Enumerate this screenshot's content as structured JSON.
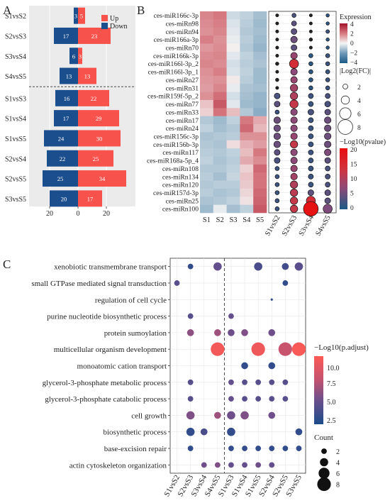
{
  "panel_labels": {
    "a": "A",
    "b": "B",
    "c": "C"
  },
  "colors": {
    "up": "#f8524d",
    "down": "#1b4e8c"
  },
  "chart_data": [
    {
      "type": "bar",
      "panel": "A",
      "legend": {
        "up": "Up",
        "down": "Down",
        "position": "top-right"
      },
      "categories": [
        "S1vsS2",
        "S2vsS3",
        "S3vsS4",
        "S4vsS5",
        "S1vsS3",
        "S1vsS4",
        "S1vsS5",
        "S2vsS4",
        "S2vsS5",
        "S3vsS5"
      ],
      "series": [
        {
          "name": "Down",
          "values": [
            3,
            17,
            6,
            13,
            16,
            17,
            24,
            22,
            25,
            20
          ]
        },
        {
          "name": "Up",
          "values": [
            5,
            23,
            3,
            13,
            22,
            29,
            30,
            25,
            34,
            17
          ]
        }
      ],
      "x_ticks": [
        "20",
        "0",
        "20"
      ],
      "xlim": [
        -25,
        35
      ],
      "separator_after_index": 3
    },
    {
      "type": "heatmap",
      "panel": "B",
      "rows": [
        "ces-miR166c-3p",
        "ces-miRn98",
        "ces-miRn94",
        "ces-miR166a-3p",
        "ces-miRn70",
        "ces-miR166k-3p",
        "ces-miR166l-3p_2",
        "ces-miR166l-3p_1",
        "ces-miRn27",
        "ces-miRn31",
        "ces-miR159f-5p_2",
        "ces-miRn77",
        "ces-miRn33",
        "ces-miRn17",
        "ces-miRn24",
        "ces-miR156c-3p",
        "ces-miR156b-3p",
        "ces-miRn117",
        "ces-miR168a-5p_4",
        "ces-miRn108",
        "ces-miRn134",
        "ces-miRn120",
        "ces-miR157d-3p",
        "ces-miRn25",
        "ces-miRn100"
      ],
      "columns": [
        "S1",
        "S2",
        "S3",
        "S4",
        "S5"
      ],
      "values": [
        [
          1.8,
          2.0,
          -0.6,
          -0.8,
          -1.2
        ],
        [
          1.7,
          1.9,
          -0.4,
          -0.9,
          -1.3
        ],
        [
          1.6,
          1.8,
          -0.3,
          -1.0,
          -1.2
        ],
        [
          1.9,
          1.6,
          -0.2,
          -0.9,
          -1.3
        ],
        [
          1.5,
          1.7,
          0.1,
          -1.0,
          -1.4
        ],
        [
          1.7,
          1.8,
          -0.3,
          -0.8,
          -1.2
        ],
        [
          1.8,
          1.7,
          -0.5,
          -0.9,
          -1.1
        ],
        [
          1.6,
          1.9,
          -0.4,
          -0.8,
          -1.3
        ],
        [
          1.5,
          1.6,
          0.2,
          -0.9,
          -1.3
        ],
        [
          1.4,
          1.8,
          -0.2,
          -1.1,
          -1.2
        ],
        [
          1.6,
          2.2,
          -0.5,
          -1.2,
          -1.4
        ],
        [
          0.8,
          2.6,
          -0.3,
          -1.3,
          -1.4
        ],
        [
          0.6,
          2.1,
          0.9,
          -1.0,
          -1.6
        ],
        [
          -1.0,
          -1.3,
          -0.8,
          2.0,
          1.2
        ],
        [
          -0.8,
          -1.2,
          -1.0,
          2.3,
          1.0
        ],
        [
          -1.1,
          -1.0,
          -0.9,
          1.6,
          1.6
        ],
        [
          -1.0,
          -1.1,
          0.4,
          1.1,
          1.4
        ],
        [
          -0.9,
          -1.0,
          -0.8,
          0.9,
          2.0
        ],
        [
          -0.8,
          -1.1,
          -0.9,
          1.2,
          1.7
        ],
        [
          -1.0,
          -1.0,
          -0.8,
          0.6,
          2.3
        ],
        [
          -0.9,
          -1.2,
          -0.7,
          0.8,
          2.1
        ],
        [
          -1.0,
          -0.9,
          -0.9,
          0.7,
          2.1
        ],
        [
          -0.9,
          -1.1,
          -1.0,
          0.5,
          2.3
        ],
        [
          -1.1,
          -1.0,
          -0.8,
          0.3,
          2.4
        ],
        [
          -1.3,
          -0.2,
          -1.2,
          -0.8,
          2.6
        ]
      ],
      "color_scale": {
        "title": "Expression",
        "ticks": [
          "4",
          "2",
          "0",
          "−2",
          "−4"
        ],
        "range": [
          -4,
          4
        ]
      }
    },
    {
      "type": "scatter",
      "panel": "B-bubble",
      "rows": [
        "ces-miR166c-3p",
        "ces-miRn98",
        "ces-miRn94",
        "ces-miR166a-3p",
        "ces-miRn70",
        "ces-miR166k-3p",
        "ces-miR166l-3p_2",
        "ces-miR166l-3p_1",
        "ces-miRn27",
        "ces-miRn31",
        "ces-miR159f-5p_2",
        "ces-miRn77",
        "ces-miRn33",
        "ces-miRn17",
        "ces-miRn24",
        "ces-miR156c-3p",
        "ces-miR156b-3p",
        "ces-miRn117",
        "ces-miR168a-5p_4",
        "ces-miRn108",
        "ces-miRn134",
        "ces-miRn120",
        "ces-miR157d-3p",
        "ces-miRn25",
        "ces-miRn100"
      ],
      "columns": [
        "S1vsS2",
        "S2vsS3",
        "S3vsS4",
        "S4vsS5"
      ],
      "size_log2fc": [
        [
          0.8,
          1.5,
          0.8,
          1.0
        ],
        [
          0.8,
          2.0,
          0.8,
          1.0
        ],
        [
          0.8,
          2.5,
          0.8,
          1.2
        ],
        [
          0.8,
          3.0,
          1.0,
          1.0
        ],
        [
          0.8,
          2.5,
          0.8,
          1.0
        ],
        [
          0.8,
          3.0,
          1.5,
          1.5
        ],
        [
          1.0,
          4.5,
          1.5,
          1.5
        ],
        [
          0.8,
          3.0,
          1.5,
          1.5
        ],
        [
          1.0,
          3.0,
          1.5,
          1.5
        ],
        [
          0.8,
          3.5,
          1.5,
          1.5
        ],
        [
          2.5,
          3.5,
          2.0,
          2.0
        ],
        [
          2.5,
          4.0,
          2.0,
          2.5
        ],
        [
          1.5,
          3.0,
          2.5,
          2.5
        ],
        [
          3.0,
          3.0,
          2.0,
          3.0
        ],
        [
          3.0,
          3.0,
          2.0,
          3.0
        ],
        [
          3.0,
          3.0,
          2.0,
          3.0
        ],
        [
          3.0,
          3.5,
          2.0,
          3.0
        ],
        [
          2.5,
          3.0,
          2.0,
          3.0
        ],
        [
          2.5,
          3.0,
          2.0,
          2.5
        ],
        [
          1.5,
          3.0,
          2.0,
          2.0
        ],
        [
          1.5,
          3.0,
          2.0,
          2.0
        ],
        [
          1.5,
          3.5,
          2.0,
          2.0
        ],
        [
          1.5,
          3.5,
          2.5,
          2.5
        ],
        [
          1.5,
          3.5,
          4.5,
          2.5
        ],
        [
          1.5,
          3.5,
          8.0,
          4.5
        ]
      ],
      "color_neglog10p": [
        [
          0,
          3,
          0,
          1
        ],
        [
          0,
          4,
          0,
          1
        ],
        [
          0,
          4,
          0,
          2
        ],
        [
          0,
          5,
          0,
          1
        ],
        [
          0,
          4,
          0,
          1
        ],
        [
          0,
          8,
          1,
          2
        ],
        [
          0,
          14,
          1,
          2
        ],
        [
          0,
          7,
          1,
          2
        ],
        [
          0,
          8,
          1,
          2
        ],
        [
          0,
          9,
          1,
          2
        ],
        [
          3,
          10,
          2,
          3
        ],
        [
          4,
          12,
          2,
          3
        ],
        [
          2,
          7,
          3,
          4
        ],
        [
          5,
          7,
          2,
          5
        ],
        [
          5,
          7,
          2,
          5
        ],
        [
          5,
          8,
          2,
          5
        ],
        [
          5,
          12,
          2,
          5
        ],
        [
          4,
          7,
          2,
          6
        ],
        [
          3,
          7,
          2,
          4
        ],
        [
          2,
          8,
          2,
          3
        ],
        [
          2,
          9,
          2,
          3
        ],
        [
          2,
          10,
          2,
          3
        ],
        [
          2,
          11,
          4,
          4
        ],
        [
          2,
          12,
          14,
          4
        ],
        [
          2,
          12,
          19,
          6
        ]
      ],
      "size_legend": {
        "title": "|Log2(FC)|",
        "values": [
          "2",
          "4",
          "6",
          "8"
        ]
      },
      "color_legend": {
        "title": "−Log10(pvalue)",
        "ticks": [
          "20",
          "15",
          "10",
          "5",
          "0"
        ],
        "range": [
          0,
          20
        ]
      }
    },
    {
      "type": "scatter",
      "panel": "C",
      "rows": [
        "xenobiotic transmembrane transport",
        "small GTPase mediated signal transduction",
        "regulation of cell cycle",
        "purine nucleotide biosynthetic process",
        "protein sumoylation",
        "multicellular organism development",
        "monoatomic cation transport",
        "glycerol-3-phosphate metabolic process",
        "glycerol-3-phosphate catabolic process",
        "cell growth",
        "biosynthetic process",
        "base-excision repair",
        "actin cytoskeleton organization"
      ],
      "columns": [
        "S1vsS2",
        "S2vsS3",
        "S3vsS4",
        "S4vsS5",
        "S1vsS3",
        "S1vsS4",
        "S1vsS5",
        "S2vsS4",
        "S2vsS5",
        "S3vsS5"
      ],
      "separator_after_index": 3,
      "points": [
        {
          "row": 0,
          "col": 1,
          "count": 2,
          "padj": 2.5
        },
        {
          "row": 0,
          "col": 3,
          "count": 4,
          "padj": 4.5
        },
        {
          "row": 0,
          "col": 6,
          "count": 4,
          "padj": 3.5
        },
        {
          "row": 0,
          "col": 8,
          "count": 3,
          "padj": 3.2
        },
        {
          "row": 0,
          "col": 9,
          "count": 4,
          "padj": 4.2
        },
        {
          "row": 1,
          "col": 0,
          "count": 2,
          "padj": 4.0
        },
        {
          "row": 1,
          "col": 8,
          "count": 2,
          "padj": 2.5
        },
        {
          "row": 2,
          "col": 7,
          "count": 1,
          "padj": 2.5
        },
        {
          "row": 3,
          "col": 1,
          "count": 2,
          "padj": 4.0
        },
        {
          "row": 3,
          "col": 4,
          "count": 2,
          "padj": 4.5
        },
        {
          "row": 4,
          "col": 1,
          "count": 3,
          "padj": 6.0
        },
        {
          "row": 4,
          "col": 3,
          "count": 3,
          "padj": 6.5
        },
        {
          "row": 4,
          "col": 4,
          "count": 3,
          "padj": 5.0
        },
        {
          "row": 4,
          "col": 5,
          "count": 3,
          "padj": 5.5
        },
        {
          "row": 4,
          "col": 7,
          "count": 3,
          "padj": 5.0
        },
        {
          "row": 5,
          "col": 3,
          "count": 8,
          "padj": 10.5
        },
        {
          "row": 5,
          "col": 6,
          "count": 8,
          "padj": 10.2
        },
        {
          "row": 5,
          "col": 8,
          "count": 8,
          "padj": 8.0
        },
        {
          "row": 5,
          "col": 9,
          "count": 8,
          "padj": 10.8
        },
        {
          "row": 6,
          "col": 5,
          "count": 3,
          "padj": 2.5
        },
        {
          "row": 6,
          "col": 7,
          "count": 3,
          "padj": 2.5
        },
        {
          "row": 7,
          "col": 1,
          "count": 2,
          "padj": 4.0
        },
        {
          "row": 7,
          "col": 4,
          "count": 2,
          "padj": 4.5
        },
        {
          "row": 7,
          "col": 5,
          "count": 2,
          "padj": 4.0
        },
        {
          "row": 7,
          "col": 6,
          "count": 2,
          "padj": 4.0
        },
        {
          "row": 7,
          "col": 7,
          "count": 2,
          "padj": 4.0
        },
        {
          "row": 7,
          "col": 8,
          "count": 2,
          "padj": 4.0
        },
        {
          "row": 8,
          "col": 1,
          "count": 2,
          "padj": 4.0
        },
        {
          "row": 8,
          "col": 4,
          "count": 2,
          "padj": 4.5
        },
        {
          "row": 8,
          "col": 5,
          "count": 2,
          "padj": 4.0
        },
        {
          "row": 8,
          "col": 6,
          "count": 2,
          "padj": 4.0
        },
        {
          "row": 8,
          "col": 7,
          "count": 2,
          "padj": 4.0
        },
        {
          "row": 8,
          "col": 8,
          "count": 2,
          "padj": 4.0
        },
        {
          "row": 9,
          "col": 1,
          "count": 4,
          "padj": 5.5
        },
        {
          "row": 9,
          "col": 3,
          "count": 3,
          "padj": 6.5
        },
        {
          "row": 9,
          "col": 4,
          "count": 4,
          "padj": 5.0
        },
        {
          "row": 9,
          "col": 5,
          "count": 4,
          "padj": 5.5
        },
        {
          "row": 9,
          "col": 7,
          "count": 3,
          "padj": 5.0
        },
        {
          "row": 10,
          "col": 1,
          "count": 4,
          "padj": 2.5
        },
        {
          "row": 10,
          "col": 2,
          "count": 3,
          "padj": 3.5
        },
        {
          "row": 10,
          "col": 4,
          "count": 4,
          "padj": 2.5
        },
        {
          "row": 10,
          "col": 9,
          "count": 3,
          "padj": 2.5
        },
        {
          "row": 11,
          "col": 1,
          "count": 2,
          "padj": 2.5
        },
        {
          "row": 11,
          "col": 4,
          "count": 2,
          "padj": 2.5
        },
        {
          "row": 11,
          "col": 5,
          "count": 2,
          "padj": 2.5
        },
        {
          "row": 11,
          "col": 6,
          "count": 2,
          "padj": 2.5
        },
        {
          "row": 11,
          "col": 7,
          "count": 2,
          "padj": 2.5
        },
        {
          "row": 11,
          "col": 8,
          "count": 2,
          "padj": 2.5
        },
        {
          "row": 11,
          "col": 9,
          "count": 2,
          "padj": 2.5
        },
        {
          "row": 12,
          "col": 2,
          "count": 2,
          "padj": 5.0
        },
        {
          "row": 12,
          "col": 3,
          "count": 2,
          "padj": 5.5
        },
        {
          "row": 12,
          "col": 4,
          "count": 2,
          "padj": 4.5
        },
        {
          "row": 12,
          "col": 5,
          "count": 2,
          "padj": 4.5
        },
        {
          "row": 12,
          "col": 6,
          "count": 2,
          "padj": 5.0
        },
        {
          "row": 12,
          "col": 7,
          "count": 2,
          "padj": 4.5
        }
      ],
      "color_legend": {
        "title": "−Log10(p.adjust)",
        "ticks": [
          "10.0",
          "7.5",
          "5.0",
          "2.5"
        ],
        "range": [
          1.5,
          11
        ]
      },
      "size_legend": {
        "title": "Count",
        "values": [
          "2",
          "4",
          "6",
          "8"
        ]
      }
    }
  ]
}
